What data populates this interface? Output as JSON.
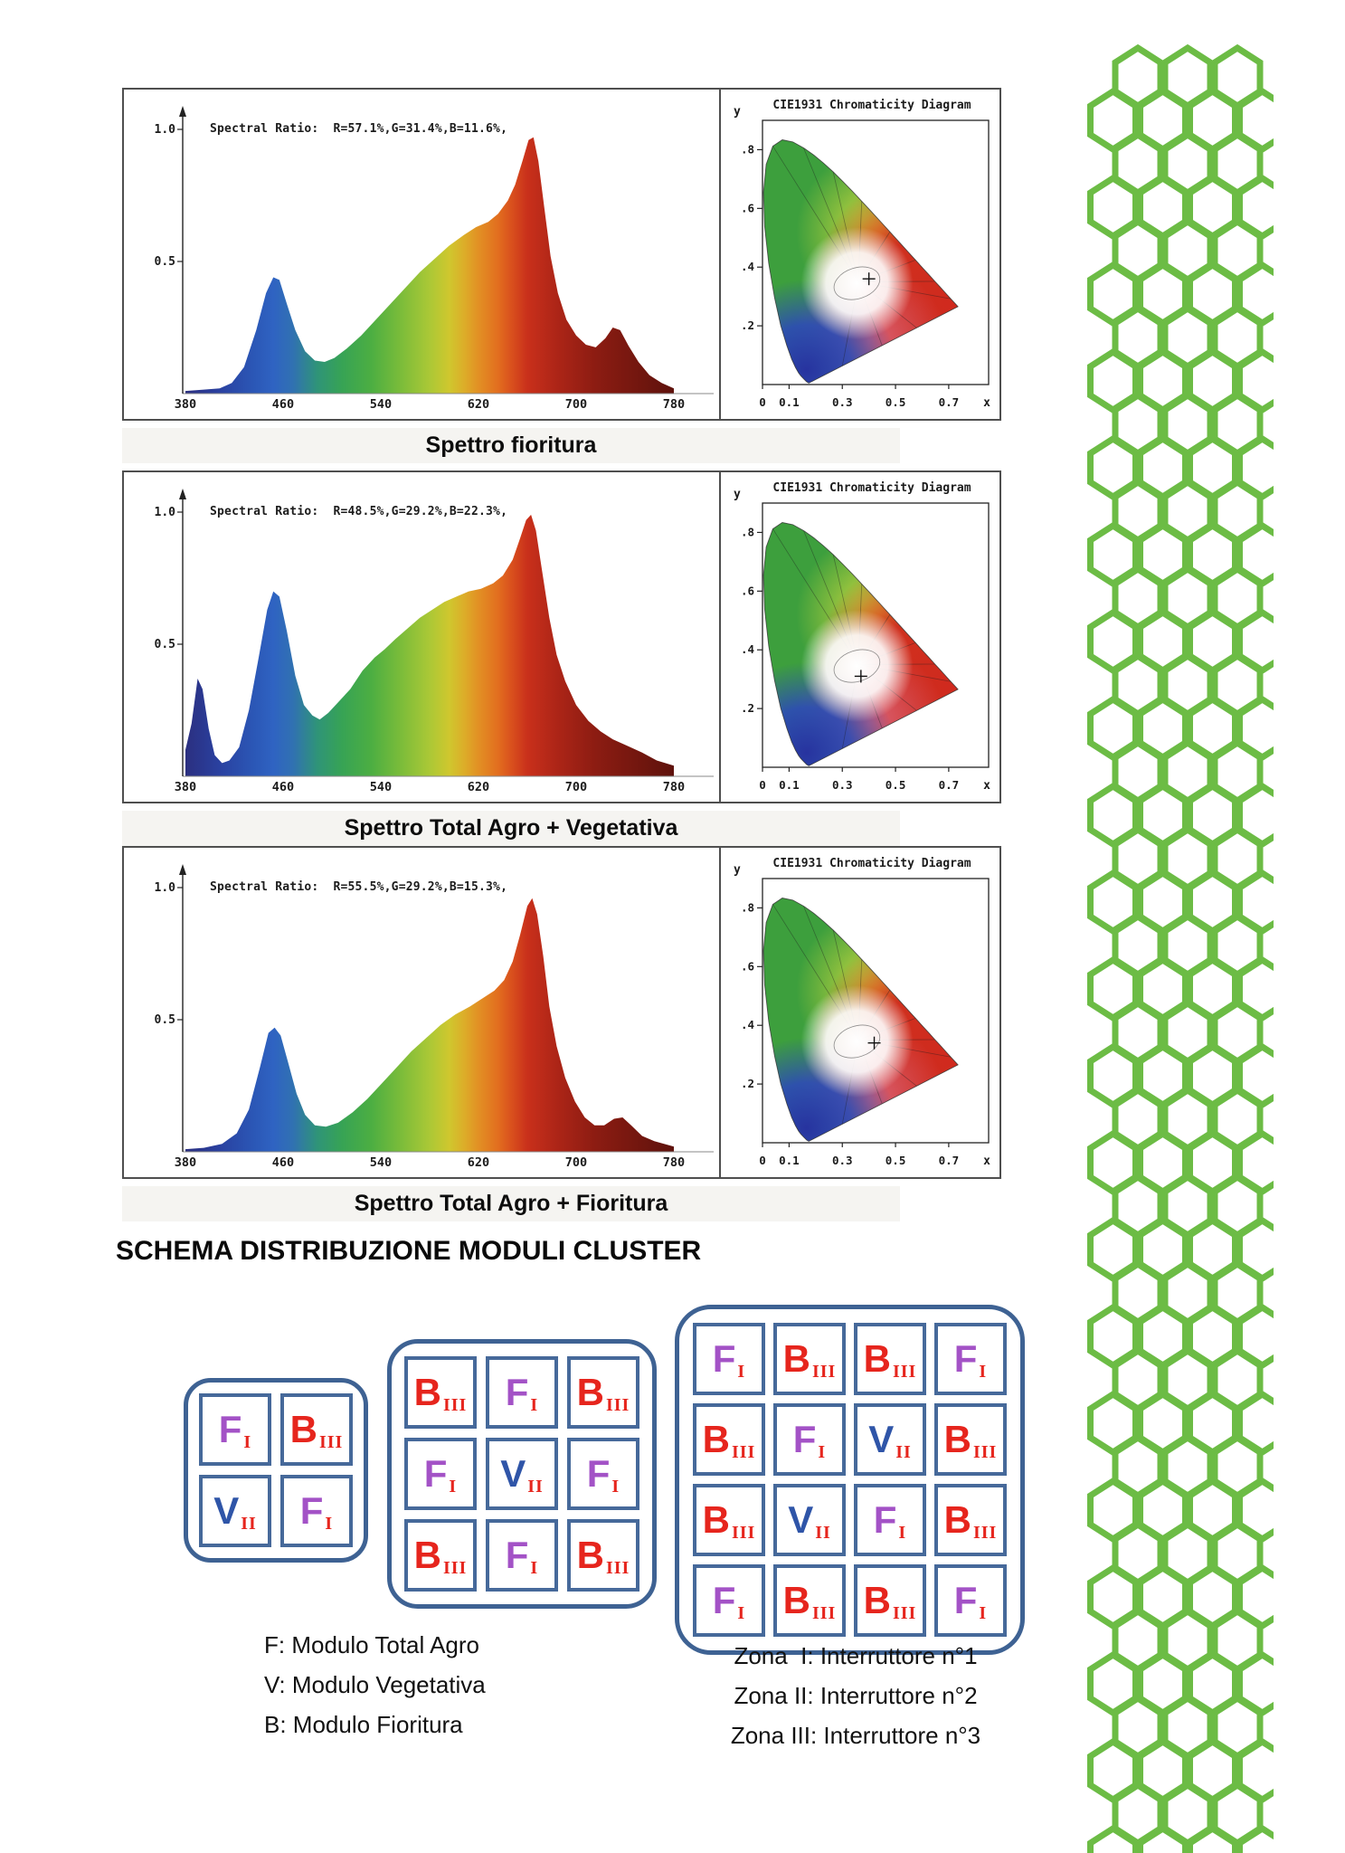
{
  "chart_data": [
    {
      "type": "area",
      "title": "Spettro fioritura",
      "ratio_label": "Spectral Ratio:  R=57.1%,G=31.4%,B=11.6%,",
      "xlim": [
        380,
        780
      ],
      "ylim": [
        0,
        1
      ],
      "x_ticks": [
        380,
        460,
        540,
        620,
        700,
        780
      ],
      "y_ticks": [
        {
          "label": "1.0",
          "value": 1.0
        },
        {
          "label": "0.5",
          "value": 0.5
        }
      ],
      "x": [
        380,
        395,
        408,
        418,
        428,
        438,
        446,
        452,
        457,
        463,
        470,
        478,
        486,
        494,
        502,
        512,
        524,
        536,
        548,
        560,
        572,
        584,
        596,
        608,
        618,
        628,
        636,
        644,
        650,
        656,
        661,
        665,
        669,
        674,
        679,
        685,
        692,
        700,
        708,
        716,
        724,
        730,
        736,
        743,
        751,
        760,
        770,
        780
      ],
      "y": [
        0.01,
        0.015,
        0.02,
        0.04,
        0.1,
        0.24,
        0.38,
        0.44,
        0.43,
        0.34,
        0.24,
        0.16,
        0.125,
        0.12,
        0.135,
        0.17,
        0.22,
        0.28,
        0.34,
        0.4,
        0.46,
        0.51,
        0.56,
        0.6,
        0.63,
        0.65,
        0.68,
        0.73,
        0.79,
        0.88,
        0.96,
        0.97,
        0.88,
        0.7,
        0.52,
        0.38,
        0.28,
        0.22,
        0.185,
        0.175,
        0.21,
        0.25,
        0.24,
        0.18,
        0.12,
        0.07,
        0.04,
        0.02
      ],
      "cie": {
        "title": "CIE1931 Chromaticity Diagram",
        "xlabel": "x",
        "ylabel": "y",
        "x_ticks": [
          {
            "label": "0",
            "value": 0
          },
          {
            "label": "0.1",
            "value": 0.1
          },
          {
            "label": "0.3",
            "value": 0.3
          },
          {
            "label": "0.5",
            "value": 0.5
          },
          {
            "label": "0.7",
            "value": 0.7
          }
        ],
        "y_ticks": [
          {
            "label": ".8",
            "value": 0.8
          },
          {
            "label": ".6",
            "value": 0.6
          },
          {
            "label": ".4",
            "value": 0.4
          },
          {
            "label": ".2",
            "value": 0.2
          }
        ],
        "white_point_marker": [
          0.4,
          0.36
        ]
      }
    },
    {
      "type": "area",
      "title": "Spettro Total Agro + Vegetativa",
      "ratio_label": "Spectral Ratio:  R=48.5%,G=29.2%,B=22.3%,",
      "xlim": [
        380,
        780
      ],
      "ylim": [
        0,
        1
      ],
      "x_ticks": [
        380,
        460,
        540,
        620,
        700,
        780
      ],
      "y_ticks": [
        {
          "label": "1.0",
          "value": 1.0
        },
        {
          "label": "0.5",
          "value": 0.5
        }
      ],
      "x": [
        380,
        385,
        390,
        394,
        399,
        404,
        410,
        416,
        424,
        432,
        440,
        447,
        452,
        457,
        463,
        470,
        477,
        484,
        490,
        497,
        505,
        515,
        525,
        535,
        543,
        552,
        562,
        572,
        582,
        592,
        602,
        612,
        622,
        632,
        640,
        648,
        654,
        659,
        663,
        667,
        672,
        678,
        684,
        691,
        700,
        710,
        720,
        730,
        742,
        754,
        766,
        780
      ],
      "y": [
        0.1,
        0.2,
        0.37,
        0.33,
        0.18,
        0.08,
        0.05,
        0.06,
        0.11,
        0.25,
        0.45,
        0.63,
        0.7,
        0.68,
        0.55,
        0.38,
        0.27,
        0.23,
        0.215,
        0.24,
        0.28,
        0.33,
        0.4,
        0.45,
        0.48,
        0.52,
        0.56,
        0.6,
        0.63,
        0.66,
        0.68,
        0.7,
        0.71,
        0.73,
        0.76,
        0.82,
        0.9,
        0.97,
        0.99,
        0.93,
        0.78,
        0.6,
        0.46,
        0.36,
        0.27,
        0.21,
        0.17,
        0.14,
        0.115,
        0.09,
        0.06,
        0.04
      ],
      "cie": {
        "title": "CIE1931 Chromaticity Diagram",
        "xlabel": "x",
        "ylabel": "y",
        "x_ticks": [
          {
            "label": "0",
            "value": 0
          },
          {
            "label": "0.1",
            "value": 0.1
          },
          {
            "label": "0.3",
            "value": 0.3
          },
          {
            "label": "0.5",
            "value": 0.5
          },
          {
            "label": "0.7",
            "value": 0.7
          }
        ],
        "y_ticks": [
          {
            "label": ".8",
            "value": 0.8
          },
          {
            "label": ".6",
            "value": 0.6
          },
          {
            "label": ".4",
            "value": 0.4
          },
          {
            "label": ".2",
            "value": 0.2
          }
        ],
        "white_point_marker": [
          0.37,
          0.31
        ]
      }
    },
    {
      "type": "area",
      "title": "Spettro Total Agro + Fioritura",
      "ratio_label": "Spectral Ratio:  R=55.5%,G=29.2%,B=15.3%,",
      "xlim": [
        380,
        780
      ],
      "ylim": [
        0,
        1
      ],
      "x_ticks": [
        380,
        460,
        540,
        620,
        700,
        780
      ],
      "y_ticks": [
        {
          "label": "1.0",
          "value": 1.0
        },
        {
          "label": "0.5",
          "value": 0.5
        }
      ],
      "x": [
        380,
        395,
        410,
        422,
        432,
        441,
        448,
        453,
        458,
        464,
        471,
        478,
        486,
        495,
        505,
        517,
        529,
        541,
        553,
        565,
        577,
        589,
        601,
        613,
        623,
        633,
        641,
        648,
        654,
        660,
        664,
        668,
        673,
        678,
        684,
        691,
        699,
        707,
        715,
        723,
        731,
        738,
        745,
        754,
        764,
        780
      ],
      "y": [
        0.01,
        0.015,
        0.03,
        0.07,
        0.16,
        0.32,
        0.45,
        0.47,
        0.44,
        0.34,
        0.22,
        0.14,
        0.1,
        0.095,
        0.11,
        0.15,
        0.2,
        0.26,
        0.32,
        0.38,
        0.43,
        0.48,
        0.52,
        0.55,
        0.58,
        0.61,
        0.65,
        0.72,
        0.82,
        0.93,
        0.96,
        0.9,
        0.74,
        0.55,
        0.4,
        0.28,
        0.19,
        0.13,
        0.1,
        0.1,
        0.125,
        0.13,
        0.1,
        0.06,
        0.04,
        0.02
      ],
      "cie": {
        "title": "CIE1931 Chromaticity Diagram",
        "xlabel": "x",
        "ylabel": "y",
        "x_ticks": [
          {
            "label": "0",
            "value": 0
          },
          {
            "label": "0.1",
            "value": 0.1
          },
          {
            "label": "0.3",
            "value": 0.3
          },
          {
            "label": "0.5",
            "value": 0.5
          },
          {
            "label": "0.7",
            "value": 0.7
          }
        ],
        "y_ticks": [
          {
            "label": ".8",
            "value": 0.8
          },
          {
            "label": ".6",
            "value": 0.6
          },
          {
            "label": ".4",
            "value": 0.4
          },
          {
            "label": ".2",
            "value": 0.2
          }
        ],
        "white_point_marker": [
          0.42,
          0.34
        ]
      }
    }
  ],
  "schema": {
    "title": "SCHEMA DISTRIBUZIONE MODULI CLUSTER",
    "grids": [
      {
        "cols": 2,
        "cells": [
          {
            "letter": "F",
            "numeral": "I"
          },
          {
            "letter": "B",
            "numeral": "III"
          },
          {
            "letter": "V",
            "numeral": "II"
          },
          {
            "letter": "F",
            "numeral": "I"
          }
        ]
      },
      {
        "cols": 3,
        "cells": [
          {
            "letter": "B",
            "numeral": "III"
          },
          {
            "letter": "F",
            "numeral": "I"
          },
          {
            "letter": "B",
            "numeral": "III"
          },
          {
            "letter": "F",
            "numeral": "I"
          },
          {
            "letter": "V",
            "numeral": "II"
          },
          {
            "letter": "F",
            "numeral": "I"
          },
          {
            "letter": "B",
            "numeral": "III"
          },
          {
            "letter": "F",
            "numeral": "I"
          },
          {
            "letter": "B",
            "numeral": "III"
          }
        ]
      },
      {
        "cols": 4,
        "cells": [
          {
            "letter": "F",
            "numeral": "I"
          },
          {
            "letter": "B",
            "numeral": "III"
          },
          {
            "letter": "B",
            "numeral": "III"
          },
          {
            "letter": "F",
            "numeral": "I"
          },
          {
            "letter": "B",
            "numeral": "III"
          },
          {
            "letter": "F",
            "numeral": "I"
          },
          {
            "letter": "V",
            "numeral": "II"
          },
          {
            "letter": "B",
            "numeral": "III"
          },
          {
            "letter": "B",
            "numeral": "III"
          },
          {
            "letter": "V",
            "numeral": "II"
          },
          {
            "letter": "F",
            "numeral": "I"
          },
          {
            "letter": "B",
            "numeral": "III"
          },
          {
            "letter": "F",
            "numeral": "I"
          },
          {
            "letter": "B",
            "numeral": "III"
          },
          {
            "letter": "B",
            "numeral": "III"
          },
          {
            "letter": "F",
            "numeral": "I"
          }
        ]
      }
    ],
    "legend_left": [
      "F: Modulo Total Agro",
      "V: Modulo Vegetativa",
      "B: Modulo Fioritura"
    ],
    "legend_right": [
      "Zona  I: Interruttore n°1",
      "Zona II: Interruttore n°2",
      "Zona III: Interruttore n°3"
    ]
  },
  "colors": {
    "honeycomb_green": "#6cbc45",
    "grid_border": "#3e6293",
    "letter_F": "#a352c6",
    "letter_B": "#e6251d",
    "letter_V": "#2f55a8",
    "numeral_red": "#e6251d"
  }
}
